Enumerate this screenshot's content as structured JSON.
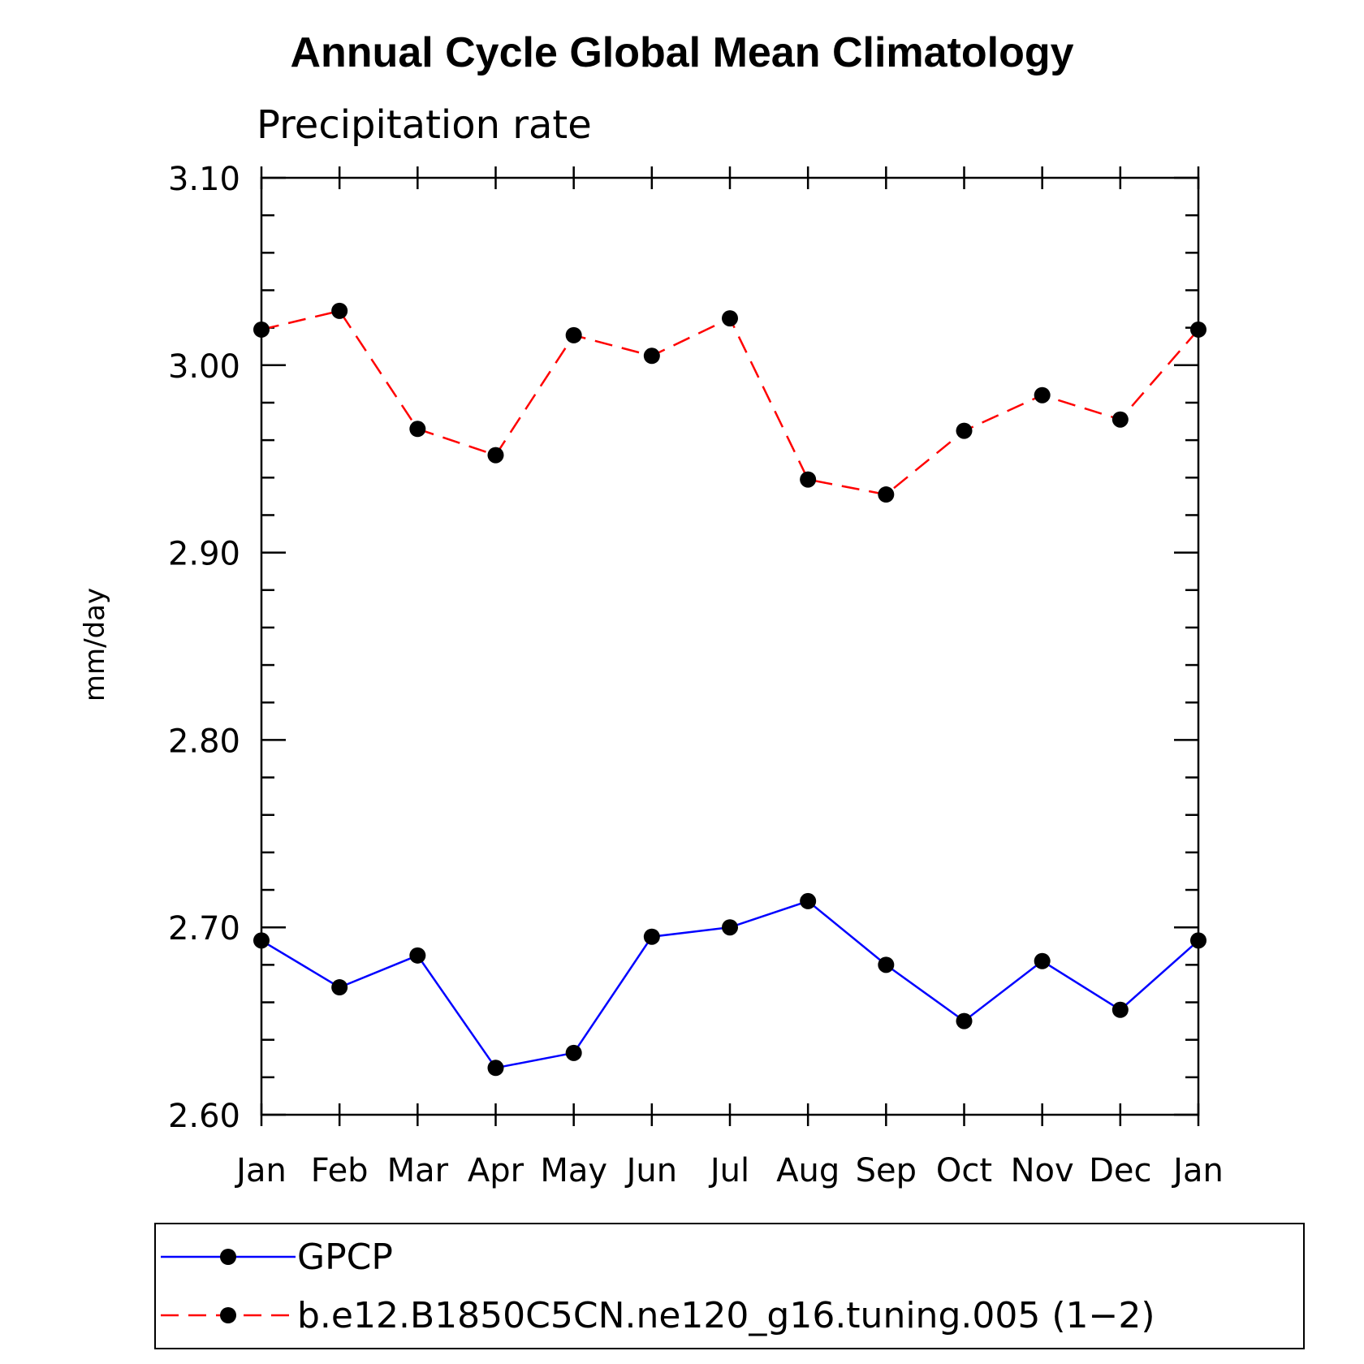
{
  "chart_data": {
    "type": "line",
    "title": "Annual Cycle Global Mean Climatology",
    "subtitle": "Precipitation rate",
    "xlabel": "",
    "ylabel": "mm/day",
    "categories": [
      "Jan",
      "Feb",
      "Mar",
      "Apr",
      "May",
      "Jun",
      "Jul",
      "Aug",
      "Sep",
      "Oct",
      "Nov",
      "Dec",
      "Jan"
    ],
    "ylim": [
      2.6,
      3.1
    ],
    "yticks": [
      "2.60",
      "2.70",
      "2.80",
      "2.90",
      "3.00",
      "3.10"
    ],
    "series": [
      {
        "name": "GPCP",
        "color": "#0000ff",
        "style": "solid",
        "values": [
          2.693,
          2.668,
          2.685,
          2.625,
          2.633,
          2.695,
          2.7,
          2.714,
          2.68,
          2.65,
          2.682,
          2.656,
          2.693
        ]
      },
      {
        "name": "b.e12.B1850C5CN.ne120_g16.tuning.005 (1−2)",
        "color": "#ff0000",
        "style": "dashed",
        "values": [
          3.019,
          3.029,
          2.966,
          2.952,
          3.016,
          3.005,
          3.025,
          2.939,
          2.931,
          2.965,
          2.984,
          2.971,
          3.019
        ]
      }
    ],
    "legend_position": "bottom"
  }
}
